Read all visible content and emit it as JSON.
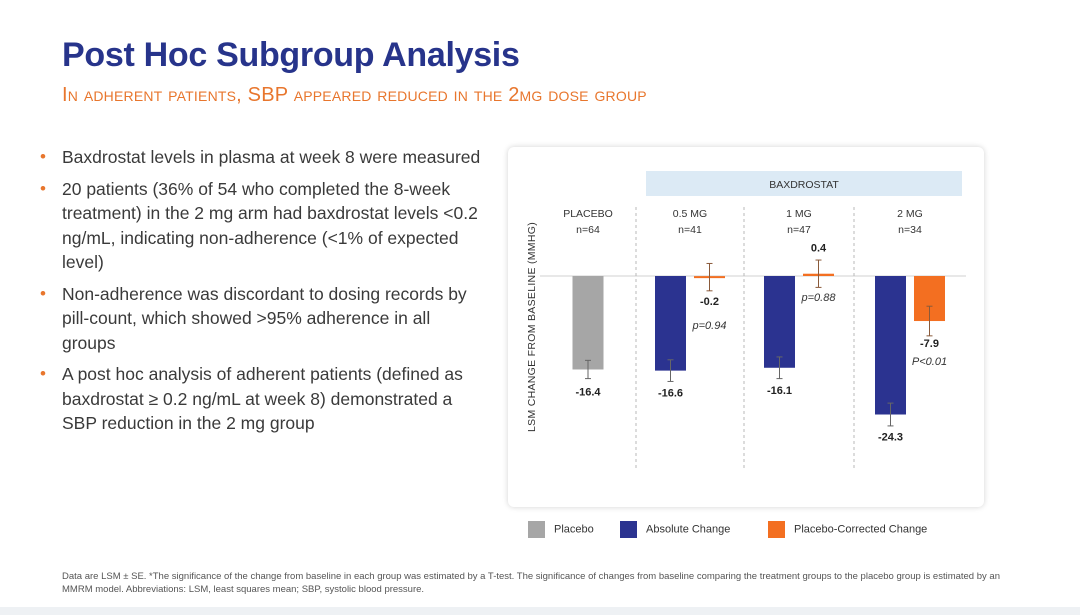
{
  "header": {
    "title": "Post Hoc Subgroup Analysis",
    "subtitle": "In adherent patients, SBP appeared reduced in the 2mg dose group"
  },
  "bullets": [
    "Baxdrostat levels in plasma at week 8 were measured",
    "20 patients (36% of 54 who completed the 8-week treatment) in the 2 mg arm had baxdrostat levels <0.2 ng/mL, indicating non-adherence (<1% of expected level)",
    "Non-adherence was discordant to dosing records by pill-count, which showed >95% adherence in all groups",
    "A post hoc analysis of adherent patients (defined as baxdrostat ≥ 0.2 ng/mL at week 8) demonstrated a SBP reduction in the 2 mg group"
  ],
  "chart_data": {
    "type": "bar",
    "ylabel": "LSM CHANGE FROM BASELINE (MMHG)",
    "group_header": "BAXDROSTAT",
    "categories": [
      {
        "name": "PLACEBO",
        "n": "n=64"
      },
      {
        "name": "0.5 MG",
        "n": "n=41"
      },
      {
        "name": "1 MG",
        "n": "n=47"
      },
      {
        "name": "2 MG",
        "n": "n=34"
      }
    ],
    "series": [
      {
        "name": "Placebo",
        "color": "#a6a6a6",
        "values": [
          -16.4,
          null,
          null,
          null
        ],
        "labels": [
          "-16.4",
          null,
          null,
          null
        ],
        "se": [
          1.6,
          null,
          null,
          null
        ]
      },
      {
        "name": "Absolute Change",
        "color": "#2b3390",
        "values": [
          null,
          -16.6,
          -16.1,
          -24.3
        ],
        "labels": [
          null,
          "-16.6",
          "-16.1",
          "-24.3"
        ],
        "se": [
          null,
          1.9,
          1.9,
          2.0
        ]
      },
      {
        "name": "Placebo-Corrected Change",
        "color": "#f36f21",
        "values": [
          null,
          -0.2,
          0.4,
          -7.9
        ],
        "labels": [
          null,
          "-0.2",
          "0.4",
          "-7.9"
        ],
        "se": [
          null,
          2.4,
          2.4,
          2.6
        ],
        "pvalues": [
          null,
          "p=0.94",
          "p=0.88",
          "P<0.01"
        ]
      }
    ],
    "ylim": [
      -30,
      2
    ],
    "grid": false,
    "legend": "bottom"
  },
  "footnote": "Data are LSM ± SE. *The significance of the change from baseline in each group was estimated by a T-test. The significance of changes from baseline comparing the treatment groups to the placebo group is estimated by an MMRM model. Abbreviations: LSM, least squares mean; SBP, systolic blood pressure."
}
